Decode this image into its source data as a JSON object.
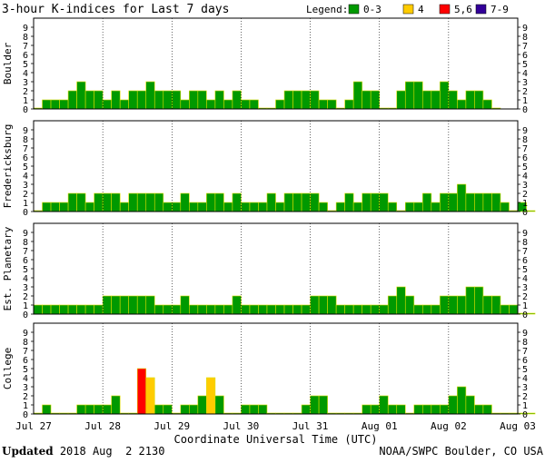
{
  "title": "3-hour K-indices for Last 7 days",
  "legend": {
    "label": "Legend:",
    "items": [
      {
        "label": "0-3",
        "color": "#009900"
      },
      {
        "label": "4",
        "color": "#ffcc00"
      },
      {
        "label": "5,6",
        "color": "#ff0000"
      },
      {
        "label": "7-9",
        "color": "#330099"
      }
    ]
  },
  "footer": {
    "updated_label": "Updated",
    "updated_value": "2018 Aug  2 2130",
    "source": "NOAA/SWPC Boulder, CO USA"
  },
  "chart_data": {
    "type": "bar",
    "xlabel": "Coordinate Universal Time (UTC)",
    "x_ticks": [
      "Jul 27",
      "Jul 28",
      "Jul 29",
      "Jul 30",
      "Jul 31",
      "Aug 01",
      "Aug 02",
      "Aug 03"
    ],
    "ylim": [
      0,
      9
    ],
    "y_ticks": [
      0,
      1,
      2,
      3,
      4,
      5,
      6,
      7,
      8,
      9
    ],
    "bins_per_day": 8,
    "panels": [
      {
        "name": "Boulder",
        "values": [
          0,
          1,
          1,
          1,
          2,
          3,
          2,
          2,
          1,
          2,
          1,
          2,
          2,
          3,
          2,
          2,
          2,
          1,
          2,
          2,
          1,
          2,
          1,
          2,
          1,
          1,
          0,
          0,
          1,
          2,
          2,
          2,
          2,
          1,
          1,
          0,
          1,
          3,
          2,
          2,
          0,
          0,
          2,
          3,
          3,
          2,
          2,
          3,
          2,
          1,
          2,
          2,
          1,
          0
        ]
      },
      {
        "name": "Fredericksburg",
        "values": [
          0,
          1,
          1,
          1,
          2,
          2,
          1,
          2,
          2,
          2,
          1,
          2,
          2,
          2,
          2,
          1,
          1,
          2,
          1,
          1,
          2,
          2,
          1,
          2,
          1,
          1,
          1,
          2,
          1,
          2,
          2,
          2,
          2,
          1,
          0,
          1,
          2,
          1,
          2,
          2,
          2,
          1,
          0,
          1,
          1,
          2,
          1,
          2,
          2,
          3,
          2,
          2,
          2,
          2,
          1,
          0,
          1,
          0
        ]
      },
      {
        "name": "Est. Planetary",
        "values": [
          1,
          1,
          1,
          1,
          1,
          1,
          1,
          1,
          2,
          2,
          2,
          2,
          2,
          2,
          1,
          1,
          1,
          2,
          1,
          1,
          1,
          1,
          1,
          2,
          1,
          1,
          1,
          1,
          1,
          1,
          1,
          1,
          2,
          2,
          2,
          1,
          1,
          1,
          1,
          1,
          1,
          2,
          3,
          2,
          1,
          1,
          1,
          2,
          2,
          2,
          3,
          3,
          2,
          2,
          1,
          1,
          0,
          0
        ]
      },
      {
        "name": "College",
        "values": [
          0,
          1,
          0,
          0,
          0,
          1,
          1,
          1,
          1,
          2,
          0,
          0,
          5,
          4,
          1,
          1,
          0,
          1,
          1,
          2,
          4,
          2,
          0,
          0,
          1,
          1,
          1,
          0,
          0,
          0,
          0,
          1,
          2,
          2,
          0,
          0,
          0,
          0,
          1,
          1,
          2,
          1,
          1,
          0,
          1,
          1,
          1,
          1,
          2,
          3,
          2,
          1,
          1,
          0,
          0,
          0,
          0,
          0
        ]
      }
    ]
  }
}
